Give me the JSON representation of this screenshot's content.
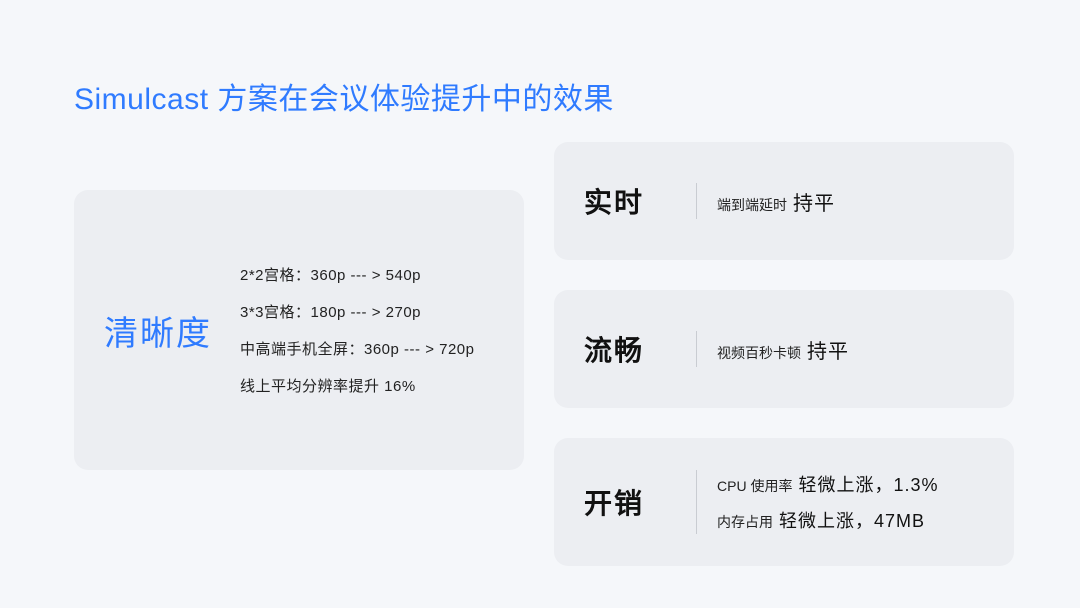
{
  "title": "Simulcast 方案在会议体验提升中的效果",
  "clarity": {
    "title": "清晰度",
    "lines": [
      "2*2宫格：360p --- > 540p",
      "3*3宫格：180p --- > 270p",
      "中高端手机全屏：360p --- > 720p",
      "线上平均分辨率提升 16%"
    ]
  },
  "cards": {
    "realtime": {
      "title": "实时",
      "label": "端到端延时",
      "value": "持平"
    },
    "smooth": {
      "title": "流畅",
      "label": "视频百秒卡顿",
      "value": "持平"
    },
    "overhead": {
      "title": "开销",
      "line1_label": "CPU 使用率",
      "line1_value": "轻微上涨，1.3%",
      "line2_label": "内存占用",
      "line2_value": "轻微上涨，47MB"
    }
  }
}
